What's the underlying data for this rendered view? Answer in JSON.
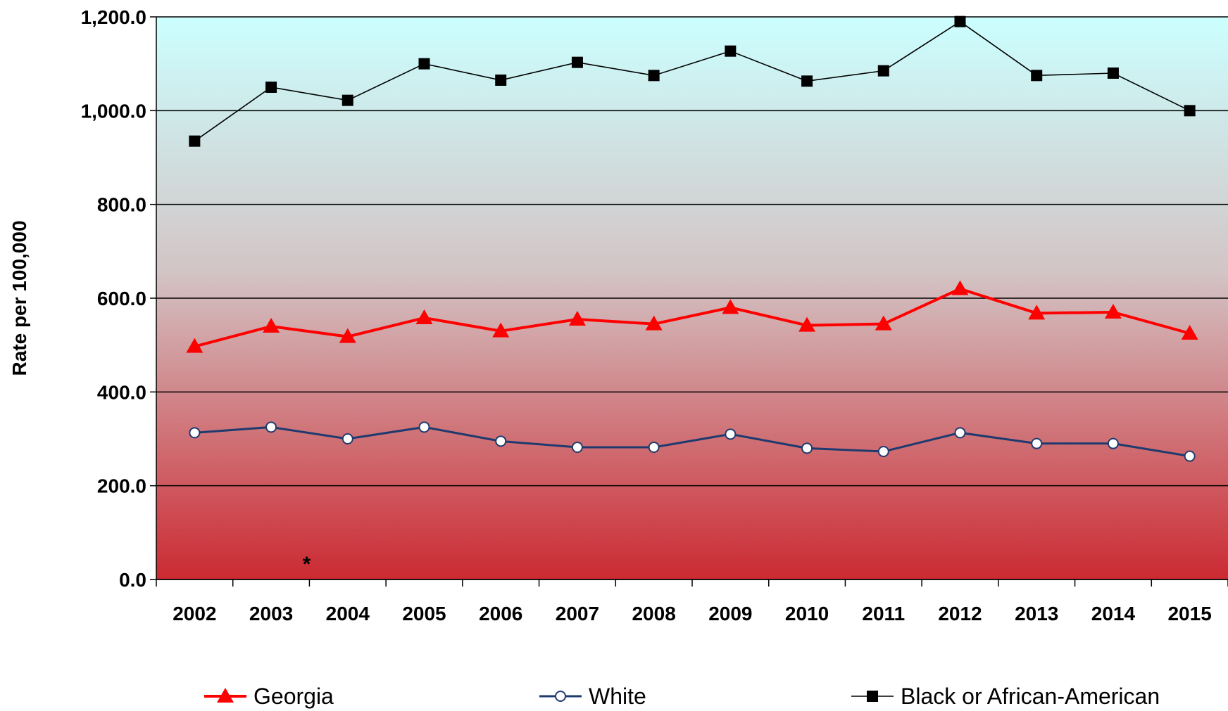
{
  "chart_data": {
    "type": "line",
    "title": "",
    "xlabel": "",
    "ylabel": "Rate per 100,000",
    "categories": [
      "2002",
      "2003",
      "2004",
      "2005",
      "2006",
      "2007",
      "2008",
      "2009",
      "2010",
      "2011",
      "2012",
      "2013",
      "2014",
      "2015"
    ],
    "ylim": [
      0,
      1200
    ],
    "yticks": [
      0,
      200,
      400,
      600,
      800,
      1000,
      1200
    ],
    "ytick_labels": [
      "0.0",
      "200.0",
      "400.0",
      "600.0",
      "800.0",
      "1,000.0",
      "1,200.0"
    ],
    "grid": true,
    "background": {
      "top_color": "#ccffff",
      "bottom_color": "#cc2a32"
    },
    "legend_position": "bottom",
    "annotations": [
      {
        "text": "*",
        "x_after_category": "2003"
      }
    ],
    "series": [
      {
        "name": "Georgia",
        "color": "#ff0000",
        "marker": "triangle",
        "values": [
          497,
          540,
          518,
          558,
          530,
          555,
          545,
          580,
          542,
          545,
          620,
          568,
          570,
          525
        ]
      },
      {
        "name": "White",
        "color": "#1f3a6e",
        "marker": "open-circle",
        "values": [
          313,
          325,
          300,
          325,
          295,
          282,
          282,
          310,
          280,
          273,
          313,
          290,
          290,
          263
        ]
      },
      {
        "name": "Black or African-American",
        "color": "#000000",
        "marker": "square",
        "values": [
          935,
          1050,
          1022,
          1100,
          1065,
          1103,
          1075,
          1127,
          1063,
          1085,
          1190,
          1075,
          1080,
          1000
        ]
      }
    ]
  }
}
